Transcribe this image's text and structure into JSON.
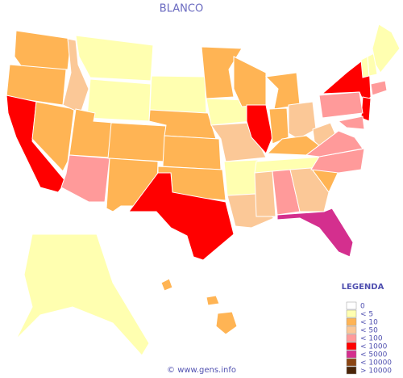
{
  "title": "BLANCO",
  "legend": {
    "title": "LEGENDA",
    "items": [
      {
        "label": "0",
        "color": "#ffffff"
      },
      {
        "label": "< 5",
        "color": "#ffffb0"
      },
      {
        "label": "< 10",
        "color": "#ffb454"
      },
      {
        "label": "< 50",
        "color": "#fbc897"
      },
      {
        "label": "< 100",
        "color": "#ff9a9a"
      },
      {
        "label": "< 1000",
        "color": "#ff0000"
      },
      {
        "label": "< 5000",
        "color": "#d42f8e"
      },
      {
        "label": "< 10000",
        "color": "#8b4513"
      },
      {
        "label": "> 10000",
        "color": "#4a2508"
      }
    ]
  },
  "regions": [
    2,
    2,
    5,
    2,
    3,
    1,
    1,
    2,
    4,
    2,
    2,
    0,
    1,
    2,
    2,
    2,
    5,
    2,
    1,
    3,
    1,
    3,
    2,
    5,
    2,
    2,
    3,
    2,
    1,
    3,
    4,
    6,
    3,
    2,
    4,
    3,
    4,
    5,
    5,
    4,
    4,
    4,
    1,
    1,
    1,
    1,
    2,
    2,
    2
  ],
  "footer": "© www.gens.info"
}
